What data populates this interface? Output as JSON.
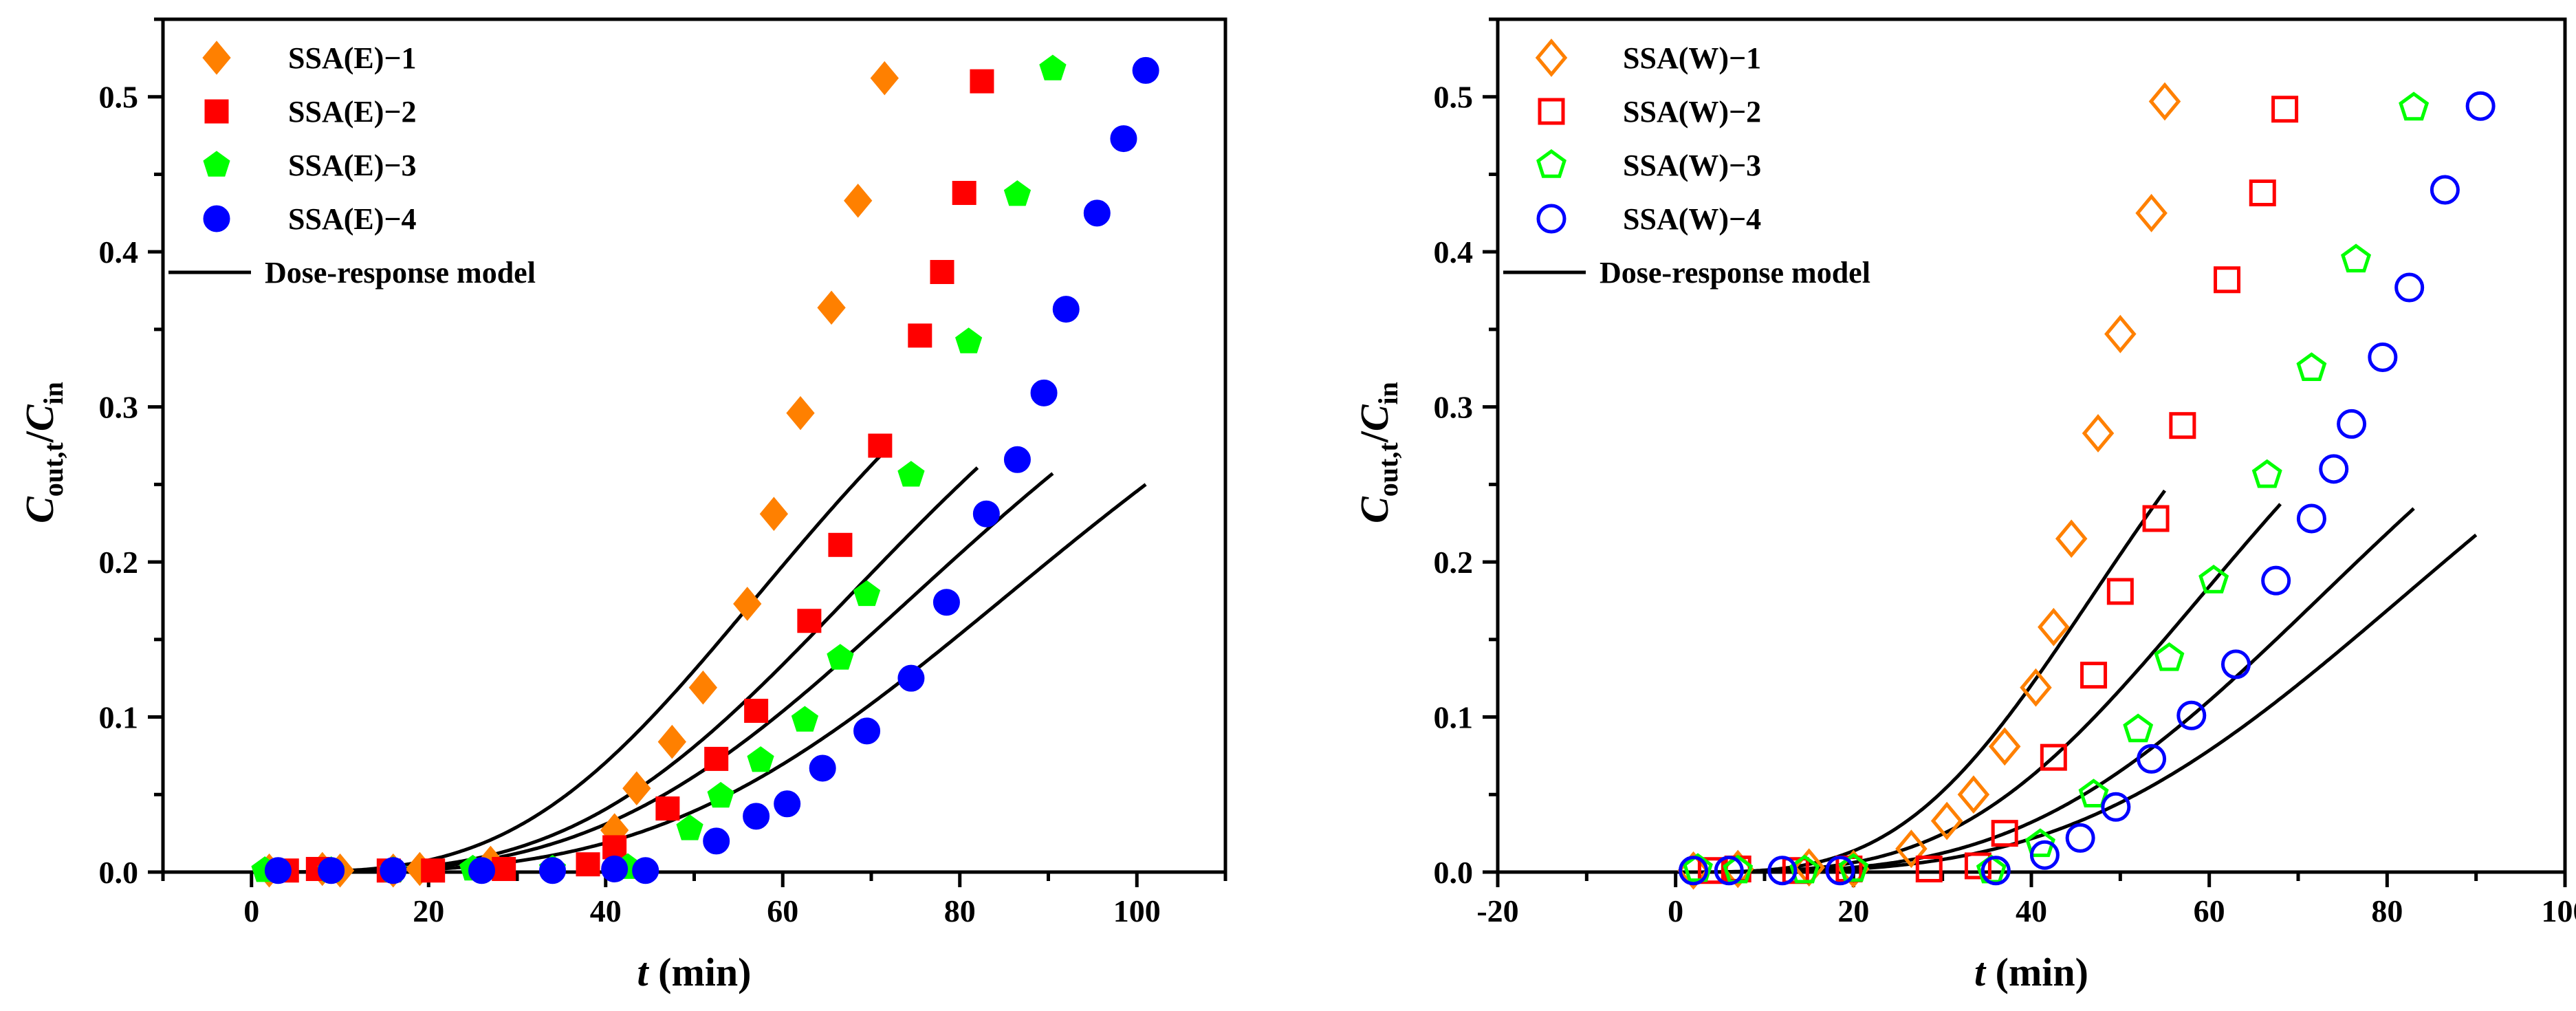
{
  "chart_data": [
    {
      "type": "scatter",
      "panel": "left",
      "xlabel": "t (min)",
      "xlabel_italic": "t",
      "xlabel_rest": " (min)",
      "ylabel_main_1": "C",
      "ylabel_sub_1": "out,t",
      "ylabel_slash": "/",
      "ylabel_main_2": "C",
      "ylabel_sub_2": "in",
      "xlim": [
        -10,
        110
      ],
      "ylim": [
        0,
        0.55
      ],
      "xticks": [
        0,
        20,
        40,
        60,
        80,
        100
      ],
      "xtick_labels": [
        "0",
        "20",
        "40",
        "60",
        "80",
        "100"
      ],
      "yticks": [
        0,
        0.1,
        0.2,
        0.3,
        0.4,
        0.5
      ],
      "ytick_labels": [
        "0.0",
        "0.1",
        "0.2",
        "0.3",
        "0.4",
        "0.5"
      ],
      "legend_position": "top-left",
      "model_label": "Dose-response model",
      "series": [
        {
          "name": "SSA(E)−1",
          "marker": "diamond",
          "filled": true,
          "color": "#ff8000",
          "x": [
            2,
            8,
            10,
            16,
            19,
            27,
            41,
            43.5,
            47.5,
            51,
            56,
            59,
            62,
            65.5,
            68.5,
            71.5
          ],
          "y": [
            0.001,
            0.002,
            0.001,
            0.001,
            0.002,
            0.006,
            0.027,
            0.054,
            0.084,
            0.119,
            0.173,
            0.231,
            0.296,
            0.364,
            0.433,
            0.512
          ],
          "model": {
            "a": 3.4,
            "b": 68.0,
            "x_end": 71
          }
        },
        {
          "name": "SSA(E)−2",
          "marker": "square",
          "filled": true,
          "color": "#ff0000",
          "x": [
            4,
            7.5,
            15.5,
            20.5,
            28.5,
            38,
            41,
            47,
            52.5,
            57,
            63,
            66.5,
            71,
            75.5,
            78,
            80.5,
            82.5
          ],
          "y": [
            0.001,
            0.002,
            0.001,
            0.001,
            0.002,
            0.005,
            0.016,
            0.041,
            0.073,
            0.104,
            0.162,
            0.211,
            0.275,
            0.346,
            0.387,
            0.438,
            0.51
          ],
          "model": {
            "a": 3.5,
            "b": 80.0,
            "x_end": 82
          }
        },
        {
          "name": "SSA(E)−3",
          "marker": "pentagon",
          "filled": true,
          "color": "#00ff00",
          "x": [
            1.5,
            9,
            16,
            25,
            34,
            42.5,
            49.5,
            53,
            57.5,
            62.5,
            66.5,
            69.5,
            74.5,
            81,
            86.5,
            90.5
          ],
          "y": [
            0.001,
            0.001,
            0.001,
            0.002,
            0.002,
            0.003,
            0.028,
            0.049,
            0.072,
            0.098,
            0.138,
            0.179,
            0.256,
            0.342,
            0.437,
            0.518
          ],
          "model": {
            "a": 3.4,
            "b": 89.0,
            "x_end": 90.5
          }
        },
        {
          "name": "SSA(E)−4",
          "marker": "circle",
          "filled": true,
          "color": "#0000ff",
          "x": [
            3,
            9,
            16,
            26,
            34,
            41,
            44.5,
            52.5,
            57,
            60.5,
            64.5,
            69.5,
            74.5,
            78.5,
            83,
            86.5,
            89.5,
            92,
            95.5,
            98.5,
            101
          ],
          "y": [
            0.001,
            0.001,
            0.001,
            0.001,
            0.001,
            0.002,
            0.001,
            0.02,
            0.036,
            0.044,
            0.067,
            0.091,
            0.125,
            0.174,
            0.231,
            0.266,
            0.309,
            0.363,
            0.425,
            0.473,
            0.517
          ],
          "model": {
            "a": 3.5,
            "b": 101.0,
            "x_end": 101
          }
        }
      ]
    },
    {
      "type": "scatter",
      "panel": "right",
      "xlabel": "t (min)",
      "xlabel_italic": "t",
      "xlabel_rest": " (min)",
      "ylabel_main_1": "C",
      "ylabel_sub_1": "out,t",
      "ylabel_slash": "/",
      "ylabel_main_2": "C",
      "ylabel_sub_2": "in",
      "xlim": [
        -20,
        100
      ],
      "ylim": [
        0,
        0.55
      ],
      "xticks": [
        -20,
        0,
        20,
        40,
        60,
        80,
        100
      ],
      "xtick_labels": [
        "-20",
        "0",
        "20",
        "40",
        "60",
        "80",
        "100"
      ],
      "yticks": [
        0,
        0.1,
        0.2,
        0.3,
        0.4,
        0.5
      ],
      "ytick_labels": [
        "0.0",
        "0.1",
        "0.2",
        "0.3",
        "0.4",
        "0.5"
      ],
      "legend_position": "top-left",
      "model_label": "Dose-response model",
      "series": [
        {
          "name": "SSA(W)−1",
          "marker": "diamond",
          "filled": false,
          "color": "#ff8000",
          "x": [
            2,
            7,
            15,
            20,
            26.5,
            30.5,
            33.5,
            37,
            40.5,
            42.5,
            44.5,
            47.5,
            50,
            53.5,
            55
          ],
          "y": [
            0.001,
            0.002,
            0.003,
            0.002,
            0.015,
            0.033,
            0.05,
            0.081,
            0.119,
            0.158,
            0.215,
            0.283,
            0.347,
            0.425,
            0.497
          ],
          "model": {
            "a": 3.5,
            "b": 55.5,
            "x_end": 55
          }
        },
        {
          "name": "SSA(W)−2",
          "marker": "square",
          "filled": false,
          "color": "#ff0000",
          "x": [
            4,
            7,
            13.5,
            19.5,
            28.5,
            34,
            37,
            42.5,
            47,
            50,
            54,
            57,
            62,
            66,
            68.5
          ],
          "y": [
            0.001,
            0.002,
            0.001,
            0.002,
            0.002,
            0.004,
            0.025,
            0.074,
            0.127,
            0.181,
            0.228,
            0.288,
            0.382,
            0.438,
            0.492
          ],
          "model": {
            "a": 3.5,
            "b": 70.0,
            "x_end": 68
          }
        },
        {
          "name": "SSA(W)−3",
          "marker": "pentagon",
          "filled": false,
          "color": "#00ff00",
          "x": [
            2.5,
            7,
            14.5,
            20,
            35.5,
            41,
            47,
            52,
            55.5,
            60.5,
            66.5,
            71.5,
            76.5,
            83
          ],
          "y": [
            0.002,
            0.001,
            0.001,
            0.002,
            0.001,
            0.018,
            0.05,
            0.092,
            0.138,
            0.188,
            0.256,
            0.325,
            0.395,
            0.493
          ],
          "model": {
            "a": 3.5,
            "b": 86.0,
            "x_end": 83
          }
        },
        {
          "name": "SSA(W)−4",
          "marker": "circle",
          "filled": false,
          "color": "#0000ff",
          "x": [
            2,
            6,
            12,
            18.5,
            36,
            41.5,
            45.5,
            49.5,
            53.5,
            58,
            63,
            67.5,
            71.5,
            74,
            76,
            79.5,
            82.5,
            86.5,
            90.5
          ],
          "y": [
            0.001,
            0.001,
            0.001,
            0.001,
            0.001,
            0.011,
            0.022,
            0.042,
            0.073,
            0.101,
            0.134,
            0.188,
            0.228,
            0.26,
            0.289,
            0.332,
            0.377,
            0.44,
            0.494
          ],
          "model": {
            "a": 3.5,
            "b": 97.0,
            "x_end": 90
          }
        }
      ]
    }
  ]
}
